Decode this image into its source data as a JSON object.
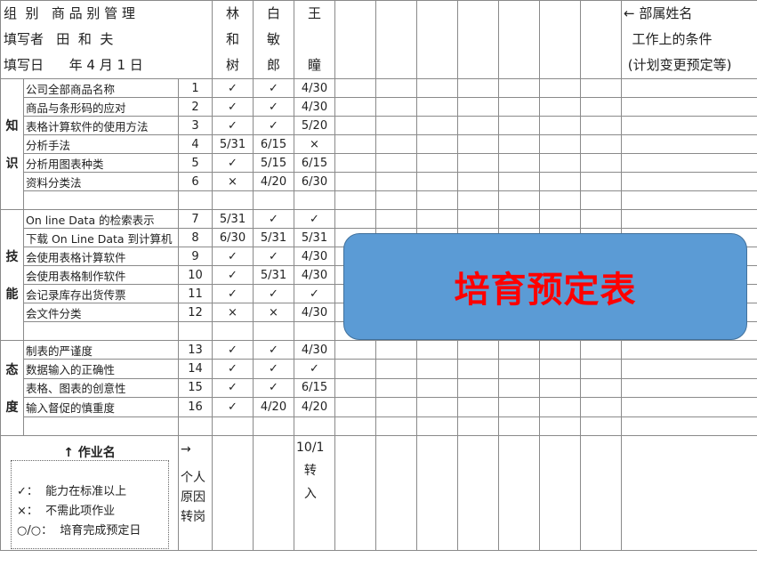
{
  "header": {
    "group_line": "组  别   商 品 别 管 理",
    "author_line": "填写者   田  和  夫",
    "date_line": "填写日      年 4 月 1 日",
    "people": [
      {
        "chars": [
          "林",
          "和",
          "树"
        ]
      },
      {
        "chars": [
          "白",
          "敏",
          "郎"
        ]
      },
      {
        "chars": [
          "王",
          "",
          "瞳"
        ]
      }
    ],
    "notes": [
      "← 部属姓名",
      "  工作上的条件",
      " (计划变更预定等)"
    ]
  },
  "categories": [
    {
      "chars": [
        "知",
        "识"
      ]
    },
    {
      "chars": [
        "技",
        "能"
      ]
    },
    {
      "chars": [
        "态",
        "度"
      ]
    }
  ],
  "rows": [
    {
      "task": "公司全部商品名称",
      "no": "1",
      "v": [
        "✓",
        "✓",
        "4/30"
      ]
    },
    {
      "task": "商品与条形码的应对",
      "no": "2",
      "v": [
        "✓",
        "✓",
        "4/30"
      ]
    },
    {
      "task": "表格计算软件的使用方法",
      "no": "3",
      "v": [
        "✓",
        "✓",
        "5/20"
      ]
    },
    {
      "task": "分析手法",
      "no": "4",
      "v": [
        "5/31",
        "6/15",
        "×"
      ]
    },
    {
      "task": "分析用图表种类",
      "no": "5",
      "v": [
        "✓",
        "5/15",
        "6/15"
      ]
    },
    {
      "task": "资料分类法",
      "no": "6",
      "v": [
        "×",
        "4/20",
        "6/30"
      ]
    },
    {
      "task": "",
      "no": "",
      "v": [
        "",
        "",
        ""
      ]
    },
    {
      "task": "On line Data 的检索表示",
      "no": "7",
      "v": [
        "5/31",
        "✓",
        "✓"
      ]
    },
    {
      "task": "下载 On Line Data 到计算机",
      "no": "8",
      "v": [
        "6/30",
        "5/31",
        "5/31"
      ]
    },
    {
      "task": "会使用表格计算软件",
      "no": "9",
      "v": [
        "✓",
        "✓",
        "4/30"
      ]
    },
    {
      "task": "会使用表格制作软件",
      "no": "10",
      "v": [
        "✓",
        "5/31",
        "4/30"
      ]
    },
    {
      "task": "会记录库存出货传票",
      "no": "11",
      "v": [
        "✓",
        "✓",
        "✓"
      ]
    },
    {
      "task": "会文件分类",
      "no": "12",
      "v": [
        "×",
        "×",
        "4/30"
      ]
    },
    {
      "task": "",
      "no": "",
      "v": [
        "",
        "",
        ""
      ]
    },
    {
      "task": "制表的严谨度",
      "no": "13",
      "v": [
        "✓",
        "✓",
        "4/30"
      ]
    },
    {
      "task": "数据输入的正确性",
      "no": "14",
      "v": [
        "✓",
        "✓",
        "✓"
      ]
    },
    {
      "task": "表格、图表的创意性",
      "no": "15",
      "v": [
        "✓",
        "✓",
        "6/15"
      ]
    },
    {
      "task": "输入督促的慎重度",
      "no": "16",
      "v": [
        "✓",
        "4/20",
        "4/20"
      ]
    },
    {
      "task": "",
      "no": "",
      "v": [
        "",
        "",
        ""
      ]
    }
  ],
  "footer": {
    "legend_title": "↑ 作业名",
    "legend_items": [
      "✓：  能力在标准以上",
      "×：  不需此项作业",
      "○/○：  培育完成预定日"
    ],
    "arrow_note": [
      "→",
      "个人",
      "原因",
      "转岗"
    ],
    "person3_note": [
      "10/1",
      "  转",
      "  入"
    ]
  },
  "banner": {
    "title": "培育预定表",
    "fill_color": "#5b9bd5",
    "text_color": "#ff0000"
  }
}
